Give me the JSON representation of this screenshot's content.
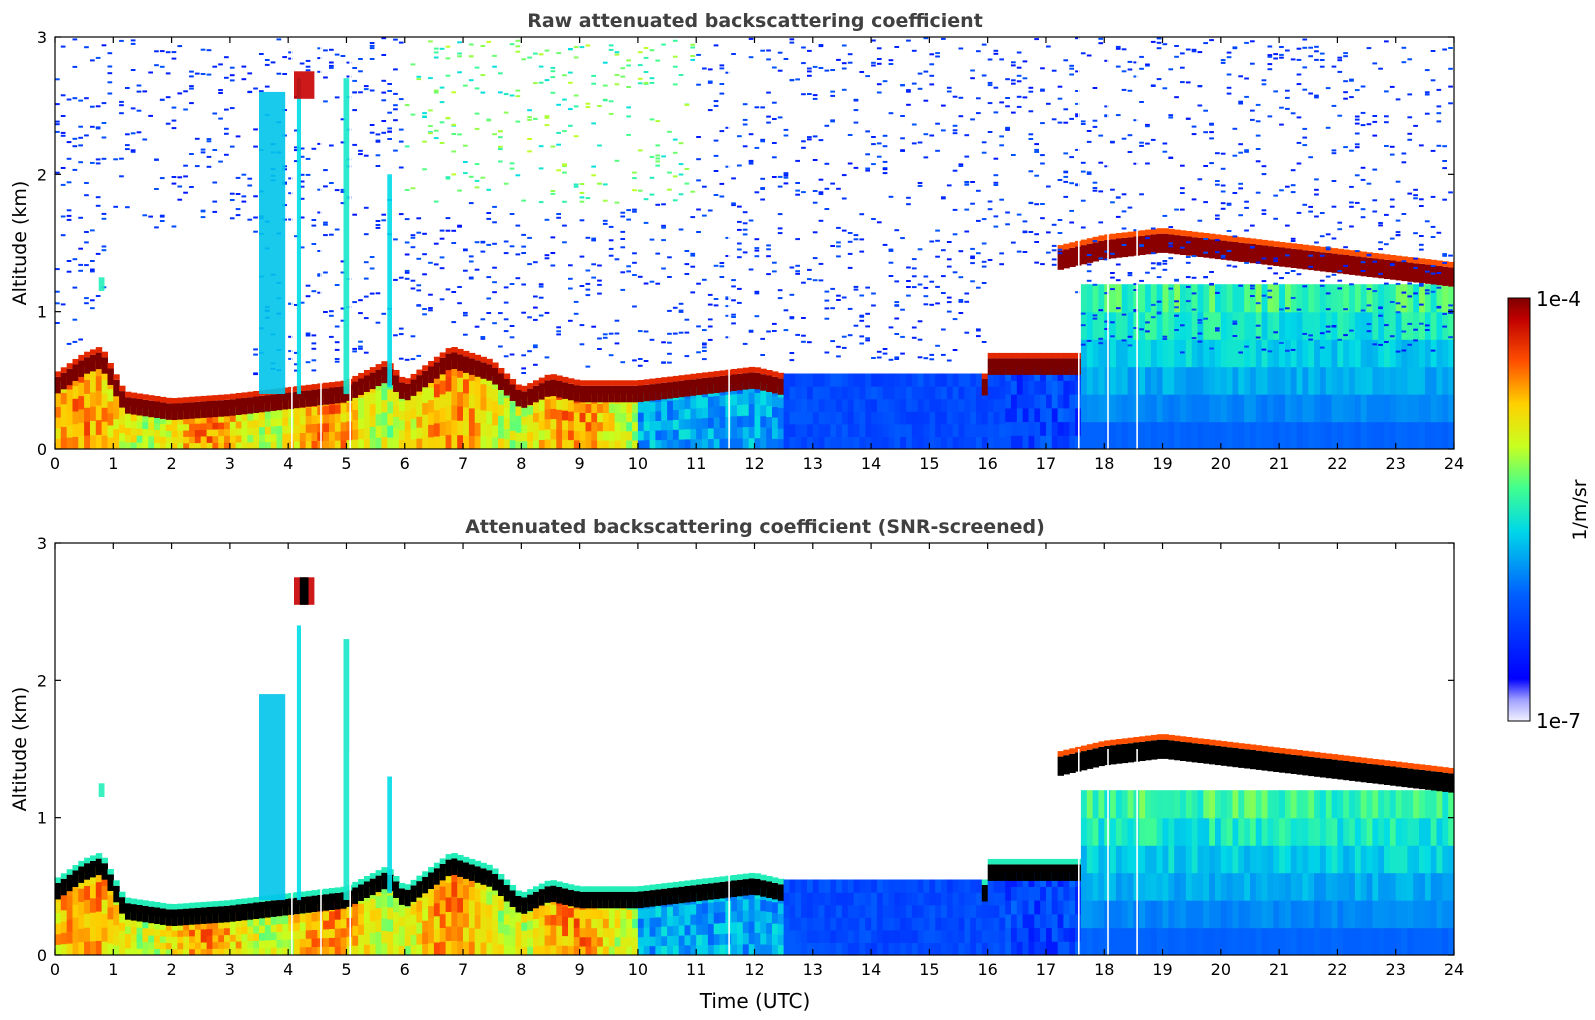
{
  "figure": {
    "x_axis_label": "Time (UTC)",
    "colorbar": {
      "max_label": "1e-4",
      "min_label": "1e-7",
      "unit_label": "1/m/sr",
      "scale": "log",
      "colormap": "jet"
    }
  },
  "chart_data": [
    {
      "type": "heatmap",
      "title": "Raw attenuated backscattering coefficient",
      "xlabel": "",
      "ylabel": "Altitude (km)",
      "xlim": [
        0,
        24
      ],
      "ylim": [
        0,
        3
      ],
      "x_ticks": [
        "0",
        "1",
        "2",
        "3",
        "4",
        "5",
        "6",
        "7",
        "8",
        "9",
        "10",
        "11",
        "12",
        "13",
        "14",
        "15",
        "16",
        "17",
        "18",
        "19",
        "20",
        "21",
        "22",
        "23",
        "24"
      ],
      "y_ticks": [
        "0",
        "1",
        "2",
        "3"
      ],
      "screened": false,
      "layer_top_km": {
        "time_h": [
          0,
          0.5,
          0.8,
          1.2,
          2,
          3,
          4,
          5,
          5.7,
          6,
          6.8,
          7.5,
          8,
          8.5,
          9,
          10,
          11,
          12,
          12.5
        ],
        "alt_km": [
          0.45,
          0.6,
          0.65,
          0.32,
          0.27,
          0.3,
          0.35,
          0.4,
          0.55,
          0.4,
          0.65,
          0.55,
          0.35,
          0.45,
          0.4,
          0.4,
          0.45,
          0.5,
          0.45
        ]
      },
      "upper_layer_km": {
        "time_h": [
          17,
          18,
          19,
          20,
          21,
          22,
          23,
          24
        ],
        "alt_km": [
          1.35,
          1.45,
          1.5,
          1.45,
          1.4,
          1.35,
          1.3,
          1.25
        ]
      },
      "mid_layer_km": {
        "time_h": [
          16,
          16.5,
          17,
          17.5
        ],
        "alt_km": [
          0.6,
          0.55,
          0.58,
          0.6
        ]
      }
    },
    {
      "type": "heatmap",
      "title": "Attenuated backscattering coefficient (SNR-screened)",
      "xlabel": "Time (UTC)",
      "ylabel": "Altitude (km)",
      "xlim": [
        0,
        24
      ],
      "ylim": [
        0,
        3
      ],
      "x_ticks": [
        "0",
        "1",
        "2",
        "3",
        "4",
        "5",
        "6",
        "7",
        "8",
        "9",
        "10",
        "11",
        "12",
        "13",
        "14",
        "15",
        "16",
        "17",
        "18",
        "19",
        "20",
        "21",
        "22",
        "23",
        "24"
      ],
      "y_ticks": [
        "0",
        "1",
        "2",
        "3"
      ],
      "screened": true
    }
  ]
}
